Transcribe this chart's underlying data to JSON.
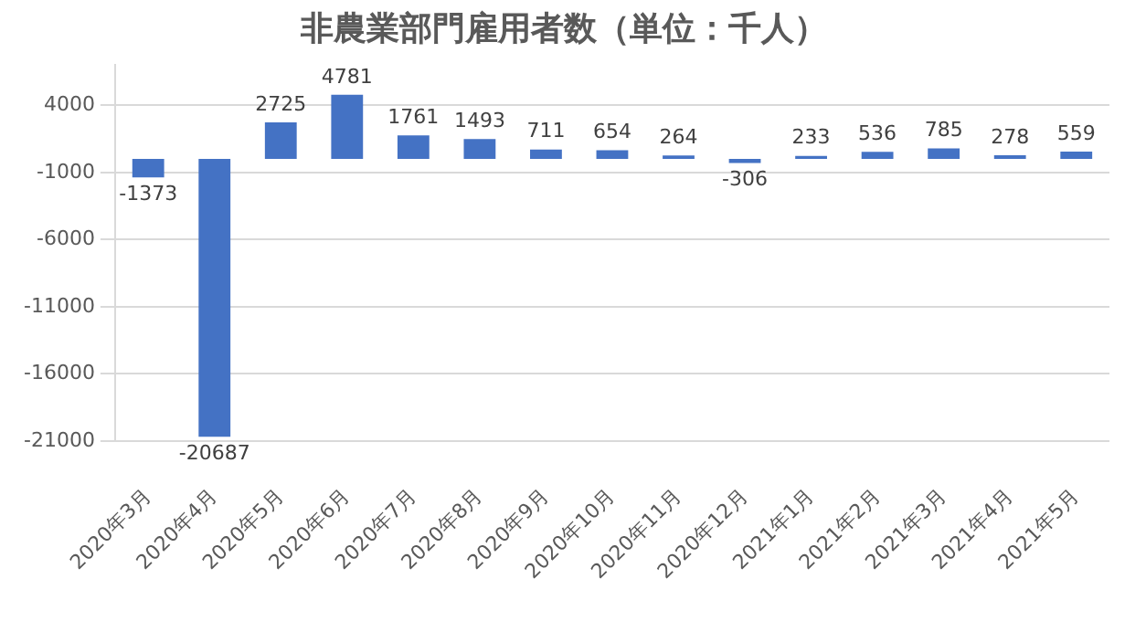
{
  "chart_data": {
    "type": "bar",
    "title": "非農業部門雇用者数（単位：千人）",
    "categories": [
      "2020年3月",
      "2020年4月",
      "2020年5月",
      "2020年6月",
      "2020年7月",
      "2020年8月",
      "2020年9月",
      "2020年10月",
      "2020年11月",
      "2020年12月",
      "2021年1月",
      "2021年2月",
      "2021年3月",
      "2021年4月",
      "2021年5月"
    ],
    "values": [
      -1373,
      -20687,
      2725,
      4781,
      1761,
      1493,
      711,
      654,
      264,
      -306,
      233,
      536,
      785,
      278,
      559
    ],
    "color": "#4472c4",
    "ylim": [
      -21000,
      7000
    ],
    "yticks": [
      -21000,
      -16000,
      -11000,
      -6000,
      -1000,
      4000
    ],
    "grid": "y",
    "data_labels": true
  }
}
